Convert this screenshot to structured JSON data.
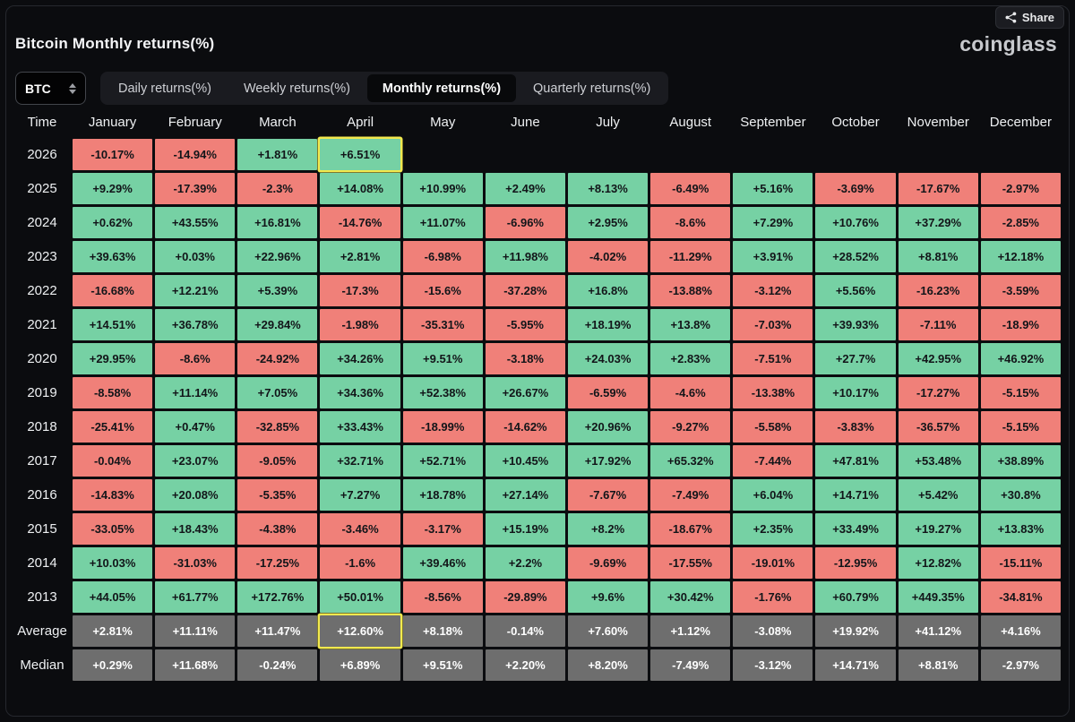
{
  "share": {
    "label": "Share"
  },
  "title": "Bitcoin Monthly returns(%)",
  "brand": "coinglass",
  "symbol_select": {
    "value": "BTC"
  },
  "tabs": [
    {
      "label": "Daily returns(%)",
      "active": false
    },
    {
      "label": "Weekly returns(%)",
      "active": false
    },
    {
      "label": "Monthly returns(%)",
      "active": true
    },
    {
      "label": "Quarterly returns(%)",
      "active": false
    }
  ],
  "chart_data": {
    "type": "heatmap",
    "title": "Bitcoin Monthly returns(%)",
    "columns": [
      "Time",
      "January",
      "February",
      "March",
      "April",
      "May",
      "June",
      "July",
      "August",
      "September",
      "October",
      "November",
      "December"
    ],
    "rows": [
      {
        "label": "2026",
        "kind": "year",
        "values": [
          "-10.17%",
          "-14.94%",
          "+1.81%",
          "+6.51%",
          "",
          "",
          "",
          "",
          "",
          "",
          "",
          ""
        ]
      },
      {
        "label": "2025",
        "kind": "year",
        "values": [
          "+9.29%",
          "-17.39%",
          "-2.3%",
          "+14.08%",
          "+10.99%",
          "+2.49%",
          "+8.13%",
          "-6.49%",
          "+5.16%",
          "-3.69%",
          "-17.67%",
          "-2.97%"
        ]
      },
      {
        "label": "2024",
        "kind": "year",
        "values": [
          "+0.62%",
          "+43.55%",
          "+16.81%",
          "-14.76%",
          "+11.07%",
          "-6.96%",
          "+2.95%",
          "-8.6%",
          "+7.29%",
          "+10.76%",
          "+37.29%",
          "-2.85%"
        ]
      },
      {
        "label": "2023",
        "kind": "year",
        "values": [
          "+39.63%",
          "+0.03%",
          "+22.96%",
          "+2.81%",
          "-6.98%",
          "+11.98%",
          "-4.02%",
          "-11.29%",
          "+3.91%",
          "+28.52%",
          "+8.81%",
          "+12.18%"
        ]
      },
      {
        "label": "2022",
        "kind": "year",
        "values": [
          "-16.68%",
          "+12.21%",
          "+5.39%",
          "-17.3%",
          "-15.6%",
          "-37.28%",
          "+16.8%",
          "-13.88%",
          "-3.12%",
          "+5.56%",
          "-16.23%",
          "-3.59%"
        ]
      },
      {
        "label": "2021",
        "kind": "year",
        "values": [
          "+14.51%",
          "+36.78%",
          "+29.84%",
          "-1.98%",
          "-35.31%",
          "-5.95%",
          "+18.19%",
          "+13.8%",
          "-7.03%",
          "+39.93%",
          "-7.11%",
          "-18.9%"
        ]
      },
      {
        "label": "2020",
        "kind": "year",
        "values": [
          "+29.95%",
          "-8.6%",
          "-24.92%",
          "+34.26%",
          "+9.51%",
          "-3.18%",
          "+24.03%",
          "+2.83%",
          "-7.51%",
          "+27.7%",
          "+42.95%",
          "+46.92%"
        ]
      },
      {
        "label": "2019",
        "kind": "year",
        "values": [
          "-8.58%",
          "+11.14%",
          "+7.05%",
          "+34.36%",
          "+52.38%",
          "+26.67%",
          "-6.59%",
          "-4.6%",
          "-13.38%",
          "+10.17%",
          "-17.27%",
          "-5.15%"
        ]
      },
      {
        "label": "2018",
        "kind": "year",
        "values": [
          "-25.41%",
          "+0.47%",
          "-32.85%",
          "+33.43%",
          "-18.99%",
          "-14.62%",
          "+20.96%",
          "-9.27%",
          "-5.58%",
          "-3.83%",
          "-36.57%",
          "-5.15%"
        ]
      },
      {
        "label": "2017",
        "kind": "year",
        "values": [
          "-0.04%",
          "+23.07%",
          "-9.05%",
          "+32.71%",
          "+52.71%",
          "+10.45%",
          "+17.92%",
          "+65.32%",
          "-7.44%",
          "+47.81%",
          "+53.48%",
          "+38.89%"
        ]
      },
      {
        "label": "2016",
        "kind": "year",
        "values": [
          "-14.83%",
          "+20.08%",
          "-5.35%",
          "+7.27%",
          "+18.78%",
          "+27.14%",
          "-7.67%",
          "-7.49%",
          "+6.04%",
          "+14.71%",
          "+5.42%",
          "+30.8%"
        ]
      },
      {
        "label": "2015",
        "kind": "year",
        "values": [
          "-33.05%",
          "+18.43%",
          "-4.38%",
          "-3.46%",
          "-3.17%",
          "+15.19%",
          "+8.2%",
          "-18.67%",
          "+2.35%",
          "+33.49%",
          "+19.27%",
          "+13.83%"
        ]
      },
      {
        "label": "2014",
        "kind": "year",
        "values": [
          "+10.03%",
          "-31.03%",
          "-17.25%",
          "-1.6%",
          "+39.46%",
          "+2.2%",
          "-9.69%",
          "-17.55%",
          "-19.01%",
          "-12.95%",
          "+12.82%",
          "-15.11%"
        ]
      },
      {
        "label": "2013",
        "kind": "year",
        "values": [
          "+44.05%",
          "+61.77%",
          "+172.76%",
          "+50.01%",
          "-8.56%",
          "-29.89%",
          "+9.6%",
          "+30.42%",
          "-1.76%",
          "+60.79%",
          "+449.35%",
          "-34.81%"
        ]
      },
      {
        "label": "Average",
        "kind": "aggregate",
        "values": [
          "+2.81%",
          "+11.11%",
          "+11.47%",
          "+12.60%",
          "+8.18%",
          "-0.14%",
          "+7.60%",
          "+1.12%",
          "-3.08%",
          "+19.92%",
          "+41.12%",
          "+4.16%"
        ]
      },
      {
        "label": "Median",
        "kind": "aggregate",
        "values": [
          "+0.29%",
          "+11.68%",
          "-0.24%",
          "+6.89%",
          "+9.51%",
          "+2.20%",
          "+8.20%",
          "-7.49%",
          "-3.12%",
          "+14.71%",
          "+8.81%",
          "-2.97%"
        ]
      }
    ],
    "highlights": [
      {
        "row": "2026",
        "column": "April"
      },
      {
        "row": "Average",
        "column": "April"
      }
    ],
    "colors": {
      "positive": "#76d1a4",
      "negative": "#f08079",
      "aggregate": "#6e6e6e",
      "highlight_border": "#f2e94e"
    }
  }
}
